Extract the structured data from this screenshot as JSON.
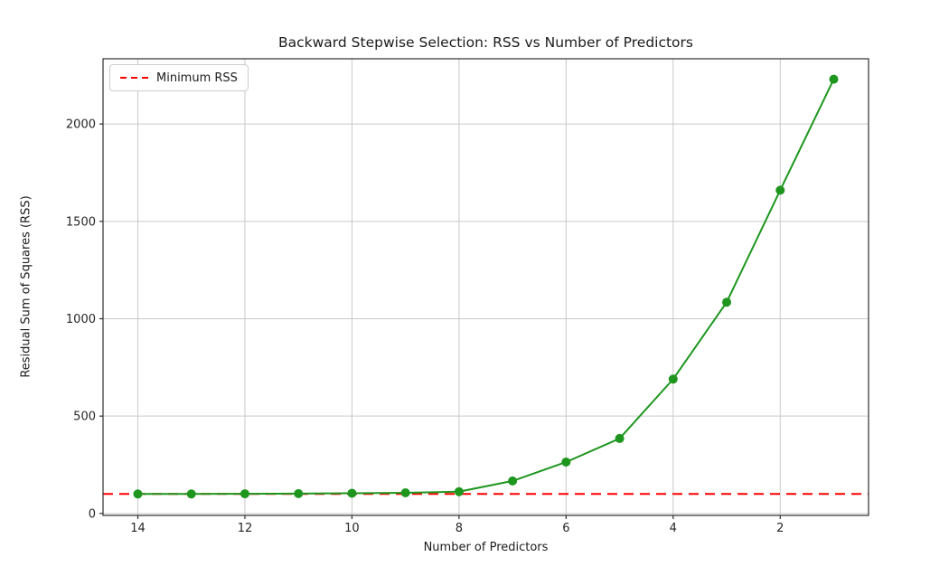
{
  "chart_data": {
    "type": "line",
    "title": "Backward Stepwise Selection: RSS vs Number of Predictors",
    "xlabel": "Number of Predictors",
    "ylabel": "Residual Sum of Squares (RSS)",
    "x": [
      14,
      13,
      12,
      11,
      10,
      9,
      8,
      7,
      6,
      5,
      4,
      3,
      2,
      1
    ],
    "series": [
      {
        "name": "RSS",
        "color": "#1e961e",
        "marker": "circle",
        "values": [
          100,
          100,
          101,
          102,
          104,
          106,
          112,
          167,
          264,
          385,
          690,
          1085,
          1660,
          2230
        ]
      }
    ],
    "reference_lines": [
      {
        "label": "Minimum RSS",
        "value": 100,
        "color": "#ff0000",
        "style": "dashed"
      }
    ],
    "x_axis": {
      "ticks": [
        14,
        12,
        10,
        8,
        6,
        4,
        2
      ],
      "inverted": true,
      "range": [
        14.65,
        0.35
      ]
    },
    "y_axis": {
      "ticks": [
        0,
        500,
        1000,
        1500,
        2000
      ],
      "range": [
        -10,
        2335
      ]
    },
    "grid": true,
    "legend_position": "upper left"
  },
  "colors": {
    "line_green": "#1e961e",
    "min_rss_red": "#ff0000",
    "grid": "#c9c9c9",
    "spine": "#2f2f2f",
    "tick_text": "#262626",
    "background": "#ffffff"
  }
}
